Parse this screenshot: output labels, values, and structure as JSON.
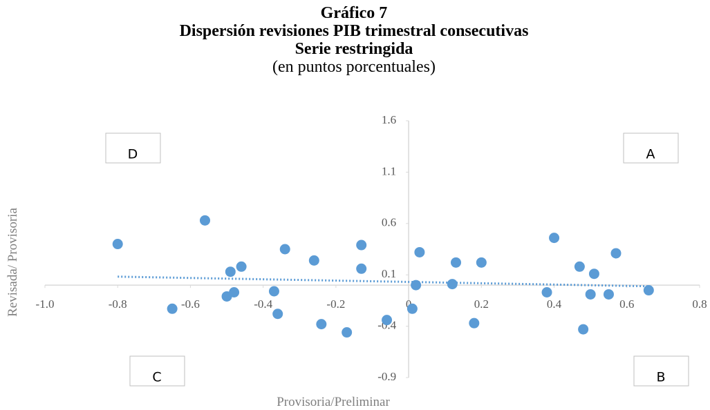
{
  "chart_data": {
    "type": "scatter",
    "title": "Gráfico 7",
    "title_line2": "Dispersión revisiones PIB trimestral consecutivas",
    "title_line3": "Serie restringida",
    "subtitle": "(en puntos porcentuales)",
    "x_label": "Provisoria/Preliminar",
    "y_label": "Revisada/ Provisoria",
    "color": "#5b9bd5",
    "trendline": true,
    "xlim": [
      -1.0,
      0.8
    ],
    "xticks": [
      {
        "value": -1.0,
        "label": "-1.0"
      },
      -0.8,
      -0.6,
      -0.4,
      -0.2,
      0,
      0.2,
      0.4,
      0.6,
      0.8
    ],
    "ylim": [
      -0.9,
      1.6
    ],
    "yticks": [
      -0.9,
      -0.4,
      0.1,
      0.6,
      1.1,
      1.6
    ],
    "quadrant_labels": [
      "D",
      "A",
      "C",
      "B"
    ],
    "x": [
      -0.8,
      -0.56,
      -0.65,
      -0.49,
      -0.46,
      -0.5,
      -0.48,
      -0.34,
      -0.37,
      -0.36,
      -0.26,
      -0.24,
      -0.17,
      -0.13,
      -0.13,
      -0.06,
      0.01,
      0.02,
      0.03,
      0.12,
      0.13,
      0.2,
      0.18,
      0.38,
      0.4,
      0.47,
      0.51,
      0.5,
      0.48,
      0.55,
      0.57,
      0.66
    ],
    "values": [
      0.4,
      0.63,
      -0.23,
      0.13,
      0.18,
      -0.11,
      -0.07,
      0.35,
      -0.06,
      -0.28,
      0.24,
      -0.38,
      -0.46,
      0.39,
      0.16,
      -0.34,
      -0.23,
      0.0,
      0.32,
      0.01,
      0.22,
      0.22,
      -0.37,
      -0.07,
      0.46,
      0.18,
      0.11,
      -0.09,
      -0.43,
      -0.09,
      0.31,
      -0.05
    ]
  }
}
